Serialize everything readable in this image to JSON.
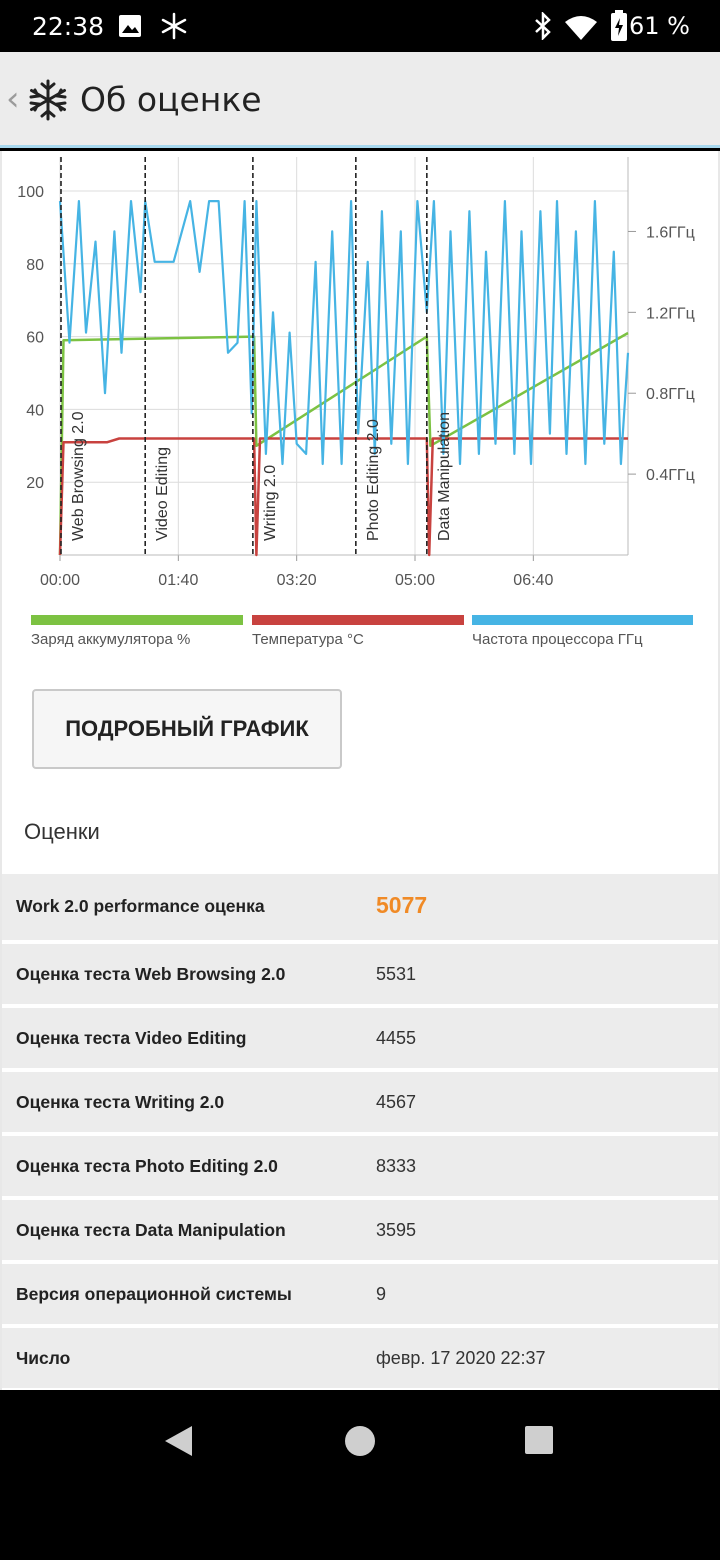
{
  "status_bar": {
    "time": "22:38",
    "battery_percent": "61 %",
    "icons": [
      "image-icon",
      "snowflake-icon",
      "bluetooth-icon",
      "wifi-icon",
      "battery-charging-icon"
    ]
  },
  "app_bar": {
    "title": "Об оценке",
    "back_icon": "chevron-left-icon",
    "logo_icon": "snowflake-logo-icon"
  },
  "chart_data": {
    "type": "line",
    "x_ticks": [
      "00:00",
      "01:40",
      "03:20",
      "05:00",
      "06:40"
    ],
    "y_ticks_left": [
      "100",
      "80",
      "60",
      "40",
      "20"
    ],
    "ylim_left": [
      0,
      100
    ],
    "y_ticks_right": [
      "1.6ГГц",
      "1.2ГГц",
      "0.8ГГц",
      "0.4ГГц"
    ],
    "ylim_right_ghz": [
      0.0,
      1.8
    ],
    "grid": true,
    "sections": [
      {
        "label": "Web Browsing 2.0",
        "start": "00:00"
      },
      {
        "label": "Video Editing",
        "start": "01:12"
      },
      {
        "label": "Writing 2.0",
        "start": "02:43"
      },
      {
        "label": "Photo Editing 2.0",
        "start": "04:10"
      },
      {
        "label": "Data Manipulation",
        "start": "05:10"
      }
    ],
    "series": [
      {
        "name": "Заряд аккумулятора %",
        "color": "#7cc242",
        "x_min": [
          0,
          3,
          164,
          166,
          310,
          313,
          480
        ],
        "y": [
          0,
          59,
          60,
          30,
          60,
          30,
          61
        ]
      },
      {
        "name": "Температура °C",
        "color": "#c8423f",
        "x_min": [
          0,
          3,
          40,
          50,
          164,
          166,
          169,
          172,
          310,
          312,
          315,
          318,
          480
        ],
        "y": [
          0,
          31,
          31,
          32,
          32,
          0,
          32,
          32,
          32,
          0,
          32,
          32,
          32
        ]
      },
      {
        "name": "Частота процессора ГГц",
        "color": "#46b4e4",
        "x_min": [
          0,
          8,
          16,
          22,
          30,
          38,
          46,
          52,
          60,
          68,
          72,
          80,
          96,
          110,
          118,
          126,
          134,
          142,
          150,
          156,
          162,
          166,
          174,
          180,
          188,
          194,
          200,
          208,
          216,
          222,
          230,
          238,
          246,
          252,
          260,
          266,
          272,
          280,
          288,
          294,
          302,
          310,
          316,
          324,
          330,
          338,
          346,
          354,
          360,
          368,
          376,
          384,
          390,
          398,
          406,
          414,
          420,
          428,
          436,
          444,
          452,
          460,
          468,
          474,
          480
        ],
        "y": [
          1.75,
          1.05,
          1.75,
          1.1,
          1.55,
          0.8,
          1.6,
          1.0,
          1.75,
          1.3,
          1.75,
          1.45,
          1.45,
          1.75,
          1.4,
          1.75,
          1.75,
          1.0,
          1.05,
          1.75,
          0.7,
          1.75,
          0.5,
          1.2,
          0.45,
          1.1,
          0.55,
          0.5,
          1.45,
          0.45,
          1.6,
          0.45,
          1.75,
          0.6,
          1.45,
          0.5,
          1.7,
          0.55,
          1.6,
          0.45,
          1.75,
          1.2,
          1.75,
          0.5,
          1.6,
          0.45,
          1.7,
          0.5,
          1.5,
          0.55,
          1.75,
          0.5,
          1.6,
          0.45,
          1.7,
          0.6,
          1.75,
          0.5,
          1.6,
          0.45,
          1.75,
          0.55,
          1.5,
          0.45,
          1.0
        ]
      }
    ]
  },
  "legend": [
    {
      "label": "Заряд аккумулятора %",
      "color": "#7cc242"
    },
    {
      "label": "Температура °C",
      "color": "#c8423f"
    },
    {
      "label": "Частота процессора ГГц",
      "color": "#46b4e4"
    }
  ],
  "detail_button": "ПОДРОБНЫЙ ГРАФИК",
  "section_title": "Оценки",
  "scores": [
    {
      "label": "Work 2.0 performance оценка",
      "value": "5077"
    },
    {
      "label": "Оценка теста Web Browsing 2.0",
      "value": "5531"
    },
    {
      "label": "Оценка теста Video Editing",
      "value": "4455"
    },
    {
      "label": "Оценка теста Writing 2.0",
      "value": "4567"
    },
    {
      "label": "Оценка теста Photo Editing 2.0",
      "value": "8333"
    },
    {
      "label": "Оценка теста Data Manipulation",
      "value": "3595"
    },
    {
      "label": "Версия операционной системы",
      "value": "9"
    },
    {
      "label": "Число",
      "value": "февр. 17 2020 22:37"
    }
  ],
  "nav_bar": {
    "icons": [
      "back-triangle-icon",
      "home-circle-icon",
      "recents-square-icon"
    ]
  }
}
